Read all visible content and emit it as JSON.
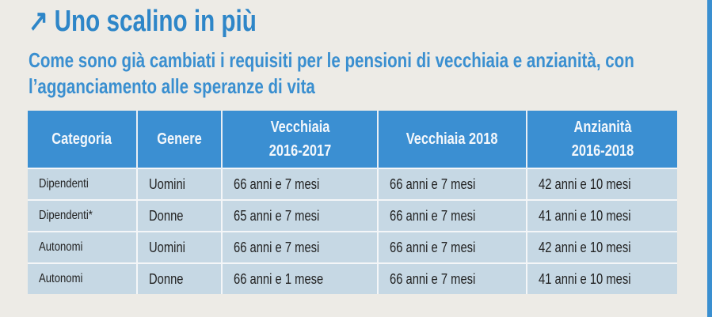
{
  "title": "Uno scalino in più",
  "title_icon": "arrow-up-right-icon",
  "subtitle": "Come sono già cambiati i requisiti per le pensioni di vecchiaia e anzianità, con l’agganciamento alle speranze di vita",
  "colors": {
    "accent": "#3b8fd2",
    "row_bg": "#c6d8e4",
    "paper": "#edebe6"
  },
  "table": {
    "headers": [
      "Categoria",
      "Genere",
      "Vecchiaia 2016-2017",
      "Vecchiaia 2018",
      "Anzianità 2016-2018"
    ],
    "rows": [
      [
        "Dipendenti",
        "Uomini",
        "66 anni e 7 mesi",
        "66 anni e 7 mesi",
        "42 anni e 10 mesi"
      ],
      [
        "Dipendenti*",
        "Donne",
        "65 anni e 7 mesi",
        "66 anni e 7 mesi",
        "41 anni e 10 mesi"
      ],
      [
        "Autonomi",
        "Uomini",
        "66 anni e 7 mesi",
        "66 anni e 7 mesi",
        "42 anni e 10 mesi"
      ],
      [
        "Autonomi",
        "Donne",
        "66 anni e 1 mese",
        "66 anni e 7 mesi",
        "41 anni e 10 mesi"
      ]
    ]
  }
}
